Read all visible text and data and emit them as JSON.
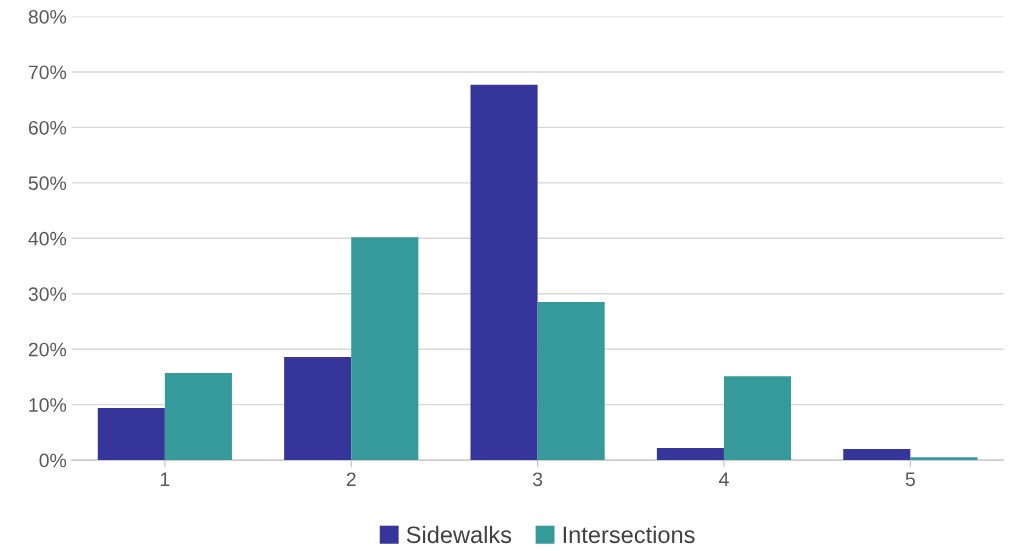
{
  "chart_data": {
    "type": "bar",
    "categories": [
      "1",
      "2",
      "3",
      "4",
      "5"
    ],
    "series": [
      {
        "name": "Sidewalks",
        "color": "#35359a",
        "values": [
          9.4,
          18.6,
          67.7,
          2.2,
          2.0
        ]
      },
      {
        "name": "Intersections",
        "color": "#379a9a",
        "values": [
          15.7,
          40.2,
          28.5,
          15.1,
          0.5
        ]
      }
    ],
    "ylim": [
      0,
      80
    ],
    "yticks": [
      {
        "value": 0,
        "label": "0%"
      },
      {
        "value": 10,
        "label": "10%"
      },
      {
        "value": 20,
        "label": "20%"
      },
      {
        "value": 30,
        "label": "30%"
      },
      {
        "value": 40,
        "label": "40%"
      },
      {
        "value": 50,
        "label": "50%"
      },
      {
        "value": 60,
        "label": "60%"
      },
      {
        "value": 70,
        "label": "70%"
      },
      {
        "value": 80,
        "label": "80%"
      }
    ],
    "grid": "y",
    "legend": "bottom"
  }
}
